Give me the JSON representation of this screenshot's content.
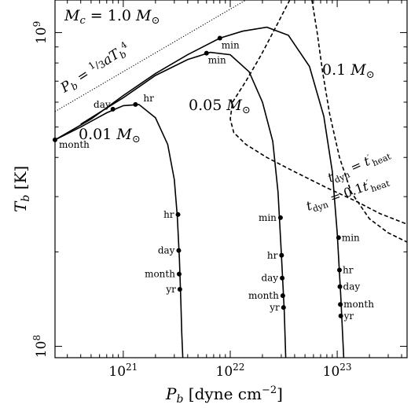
{
  "chart_data": {
    "type": "line",
    "title": "",
    "xlabel": "P_b [dyne cm^-2]",
    "ylabel": "T_b [K]",
    "xscale": "log",
    "yscale": "log",
    "xlim": [
      2.3e+20,
      4.5e+23
    ],
    "ylim": [
      92000000.0,
      1270000000.0
    ],
    "xticks": [
      "10^21",
      "10^22",
      "10^23"
    ],
    "yticks": [
      "10^8",
      "10^9"
    ],
    "core_mass_label": "M_c = 1.0 M_⊙",
    "radiation_line": {
      "label": "P_b = (1/3) a T_b^4",
      "x": [
        2.3e+20,
        1.4e+22
      ],
      "y": [
        560000000.0,
        1270000000.0
      ]
    },
    "series": [
      {
        "name": "0.01 M_⊙",
        "x": [
          2.3e+20,
          4e+20,
          7e+20,
          1e+21,
          1.4e+21,
          2e+21,
          2.6e+21,
          3e+21,
          3.2e+21,
          3.35e+21,
          3.45e+21,
          3.52e+21,
          3.6e+21
        ],
        "y": [
          455000000.0,
          500000000.0,
          555000000.0,
          585000000.0,
          590000000.0,
          535000000.0,
          440000000.0,
          340000000.0,
          260000000.0,
          190000000.0,
          140000000.0,
          110000000.0,
          92000000.0
        ],
        "markers": [
          {
            "label": "month",
            "x": 2.3e+20,
            "y": 455000000.0
          },
          {
            "label": "day",
            "x": 8e+20,
            "y": 570000000.0
          },
          {
            "label": "hr",
            "x": 1.3e+21,
            "y": 590000000.0
          },
          {
            "label": "hr",
            "x": 3.25e+21,
            "y": 263000000.0
          },
          {
            "label": "day",
            "x": 3.3e+21,
            "y": 202000000.0
          },
          {
            "label": "month",
            "x": 3.33e+21,
            "y": 170000000.0
          },
          {
            "label": "yr",
            "x": 3.38e+21,
            "y": 152000000.0
          }
        ]
      },
      {
        "name": "0.05 M_⊙",
        "x": [
          4e+20,
          1e+21,
          2e+21,
          4e+21,
          6.5e+21,
          1e+22,
          1.5e+22,
          2e+22,
          2.5e+22,
          2.8e+22,
          3e+22,
          3.2e+22,
          3.3e+22
        ],
        "y": [
          510000000.0,
          620000000.0,
          730000000.0,
          820000000.0,
          865000000.0,
          850000000.0,
          750000000.0,
          600000000.0,
          450000000.0,
          310000000.0,
          200000000.0,
          130000000.0,
          92000000.0
        ],
        "markers": [
          {
            "label": "min",
            "x": 6e+21,
            "y": 860000000.0
          },
          {
            "label": "min",
            "x": 2.95e+22,
            "y": 257000000.0
          },
          {
            "label": "hr",
            "x": 3.02e+22,
            "y": 195000000.0
          },
          {
            "label": "day",
            "x": 3.06e+22,
            "y": 165000000.0
          },
          {
            "label": "month",
            "x": 3.1e+22,
            "y": 145000000.0
          },
          {
            "label": "yr",
            "x": 3.15e+22,
            "y": 133000000.0
          }
        ]
      },
      {
        "name": "0.1 M_⊙",
        "x": [
          2.3e+20,
          5e+20,
          1e+21,
          2e+21,
          4e+21,
          8e+21,
          1.3e+22,
          2.2e+22,
          3.5e+22,
          5.5e+22,
          7.5e+22,
          9e+22,
          1e+23,
          1.08e+23,
          1.15e+23
        ],
        "y": [
          455000000.0,
          530000000.0,
          630000000.0,
          740000000.0,
          850000000.0,
          960000000.0,
          1010000000.0,
          1040000000.0,
          980000000.0,
          780000000.0,
          540000000.0,
          360000000.0,
          230000000.0,
          145000000.0,
          92000000.0
        ],
        "markers": [
          {
            "label": "min",
            "x": 8e+21,
            "y": 960000000.0
          },
          {
            "label": "min",
            "x": 1.03e+23,
            "y": 222000000.0
          },
          {
            "label": "hr",
            "x": 1.05e+23,
            "y": 175000000.0
          },
          {
            "label": "day",
            "x": 1.06e+23,
            "y": 155000000.0
          },
          {
            "label": "month",
            "x": 1.07e+23,
            "y": 136000000.0
          },
          {
            "label": "yr",
            "x": 1.08e+23,
            "y": 125000000.0
          }
        ]
      }
    ],
    "dashed_curves": [
      {
        "label": "t_dyn = t'_heat",
        "x": [
          3.6e+22,
          2.7e+22,
          1.95e+22,
          1.4e+22,
          1.05e+22,
          1e+22,
          1.08e+22,
          1.4e+22,
          2.2e+22,
          4e+22,
          8e+22,
          1.5e+23,
          2.5e+23,
          4.5e+23
        ],
        "y": [
          1270000000.0,
          1050000000.0,
          850000000.0,
          700000000.0,
          600000000.0,
          530000000.0,
          480000000.0,
          440000000.0,
          400000000.0,
          360000000.0,
          320000000.0,
          290000000.0,
          265000000.0,
          245000000.0
        ]
      },
      {
        "label": "t_dyn = 0.1t'_heat",
        "x": [
          5.8e+22,
          6.5e+22,
          7.3e+22,
          8.5e+22,
          1.05e+23,
          1.35e+23,
          2e+23,
          3e+23,
          4.5e+23
        ],
        "y": [
          1270000000.0,
          1000000000.0,
          750000000.0,
          550000000.0,
          400000000.0,
          310000000.0,
          255000000.0,
          230000000.0,
          215000000.0
        ]
      }
    ]
  }
}
